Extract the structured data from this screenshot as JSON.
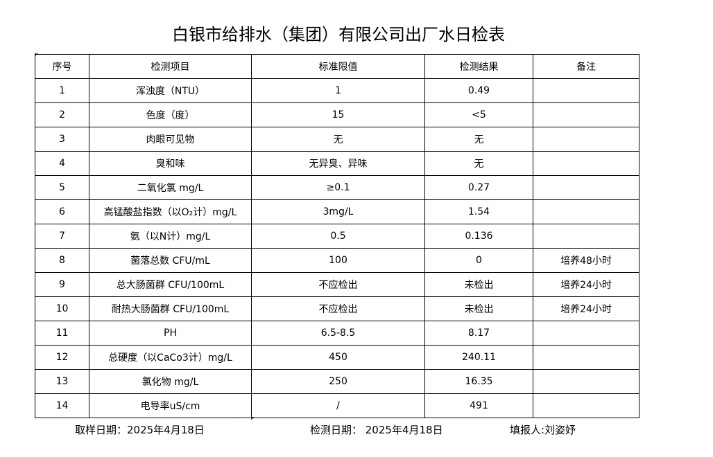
{
  "title": "白银市给排水（集团）有限公司出厂水日检表",
  "table": {
    "headers": [
      "序号",
      "检测项目",
      "标准限值",
      "检测结果",
      "备注"
    ],
    "rows": [
      [
        "1",
        "浑浊度（NTU）",
        "1",
        "0.49",
        ""
      ],
      [
        "2",
        "色度（度）",
        "15",
        "<5",
        ""
      ],
      [
        "3",
        "肉眼可见物",
        "无",
        "无",
        ""
      ],
      [
        "4",
        "臭和味",
        "无异臭、异味",
        "无",
        ""
      ],
      [
        "5",
        "二氧化氯 mg/L",
        "≥0.1",
        "0.27",
        ""
      ],
      [
        "6",
        "高锰酸盐指数（以O₂计）mg/L",
        "3mg/L",
        "1.54",
        ""
      ],
      [
        "7",
        "氨（以N计）mg/L",
        "0.5",
        "0.136",
        ""
      ],
      [
        "8",
        "菌落总数 CFU/mL",
        "100",
        "0",
        "培养48小时"
      ],
      [
        "9",
        "总大肠菌群 CFU/100mL",
        "不应检出",
        "未检出",
        "培养24小时"
      ],
      [
        "10",
        "耐热大肠菌群 CFU/100mL",
        "不应检出",
        "未检出",
        "培养24小时"
      ],
      [
        "11",
        "PH",
        "6.5-8.5",
        "8.17",
        ""
      ],
      [
        "12",
        "总硬度（以CaCo3计）mg/L",
        "450",
        "240.11",
        ""
      ],
      [
        "13",
        "氯化物 mg/L",
        "250",
        "16.35",
        ""
      ],
      [
        "14",
        "电导率uS/cm",
        "/",
        "491",
        ""
      ]
    ]
  },
  "footer": {
    "sampling_date": "取样日期：2025年4月18日",
    "test_date": "检测日期： 2025年4月18日",
    "reporter": "填报人:刘姿妤"
  }
}
